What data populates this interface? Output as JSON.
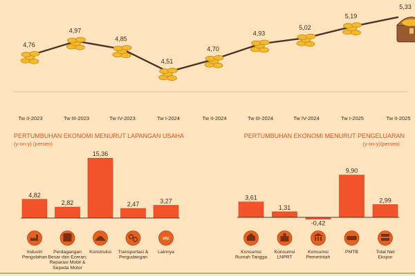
{
  "chart_data": [
    {
      "type": "line",
      "title": "",
      "categories": [
        "Tw II-2023",
        "Tw III-2023",
        "Tw IV-2023",
        "Tw I-2024",
        "Tw II-2024",
        "Tw III-2024",
        "Tw IV-2024",
        "Tw I-2025",
        "Tw II-2025"
      ],
      "values": [
        4.76,
        4.97,
        4.85,
        4.51,
        4.7,
        4.93,
        5.02,
        5.19,
        5.33
      ],
      "value_labels": [
        "4,76",
        "4,97",
        "4,85",
        "4,51",
        "4,70",
        "4,93",
        "5,02",
        "5,19",
        "5,33"
      ]
    },
    {
      "type": "bar",
      "title": "PERTUMBUHAN EKONOMI MENURUT LAPANGAN USAHA",
      "ylabel": "(y-on-y) (persen)",
      "categories": [
        "Industri Pengolahan",
        "Perdagangan Besar dan Eceran; Reparasi Mobil & Sepeda Motor",
        "Konstruksi",
        "Transportasi & Pergudangan",
        "Lainnya"
      ],
      "category_lines": [
        [
          "Industri",
          "Pengolahan"
        ],
        [
          "Perdagangan",
          "Besar dan Eceran;",
          "Reparasi Mobil &",
          "Sepeda Motor"
        ],
        [
          "Konstruksi"
        ],
        [
          "Transportasi &",
          "Pergudangan"
        ],
        [
          "Lainnya"
        ]
      ],
      "values": [
        4.82,
        2.82,
        15.36,
        2.47,
        3.27
      ],
      "value_labels": [
        "4,82",
        "2,82",
        "15,36",
        "2,47",
        "3,27"
      ],
      "icons": [
        "factory-icon",
        "shop-icon",
        "construction-icon",
        "transport-icon",
        "etc-icon"
      ],
      "icon_texts": [
        "",
        "",
        "",
        "",
        "etc"
      ]
    },
    {
      "type": "bar",
      "title": "PERTUMBUHAN EKONOMI MENURUT PENGELUARAN",
      "ylabel": "(y-on-y)(persen)",
      "categories": [
        "Konsumsi Rumah Tangga",
        "Konsumsi LNPRT",
        "Konsumsi Pemerintah",
        "PMTB",
        "Total Net Ekspor"
      ],
      "category_lines": [
        [
          "Konsumsi",
          "Rumah Tangga"
        ],
        [
          "Konsumsi",
          "LNPRT"
        ],
        [
          "Konsumsi",
          "Pemerintah"
        ],
        [
          "PMTB"
        ],
        [
          "Total Net",
          "Ekspor"
        ]
      ],
      "values": [
        3.61,
        1.31,
        -0.42,
        9.9,
        2.99
      ],
      "value_labels": [
        "3,61",
        "1,31",
        "-0,42",
        "9,90",
        "2,99"
      ],
      "icons": [
        "household-icon",
        "nonprofit-icon",
        "government-icon",
        "machinery-icon",
        "export-icon"
      ]
    }
  ],
  "colors": {
    "background": "#fde4bf",
    "line": "#4a342a",
    "bar": "#f2532a",
    "bar_stroke": "#d63e1a",
    "title": "#d9531e",
    "icon_circle": "#e4621f",
    "gold": "#f5b82e"
  }
}
